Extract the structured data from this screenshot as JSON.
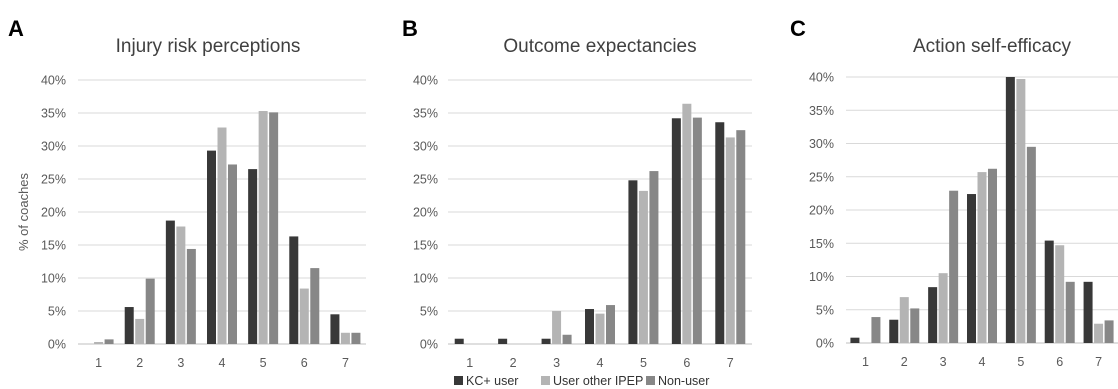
{
  "figure": {
    "legend": [
      "KC+ user",
      "User other IPEP",
      "Non-user"
    ]
  },
  "chart_data": [
    {
      "panel": "A",
      "type": "bar",
      "title": "Injury risk perceptions",
      "ylabel": "% of coaches",
      "xlabel": "",
      "categories": [
        "1",
        "2",
        "3",
        "4",
        "5",
        "6",
        "7"
      ],
      "yticks": [
        "0%",
        "5%",
        "10%",
        "15%",
        "20%",
        "25%",
        "30%",
        "35%",
        "40%"
      ],
      "ylim": [
        0,
        40
      ],
      "grid": true,
      "series": [
        {
          "name": "KC+ user",
          "values": [
            0,
            5.6,
            18.7,
            29.3,
            26.5,
            16.3,
            4.5
          ]
        },
        {
          "name": "User other IPEP",
          "values": [
            0.3,
            3.8,
            17.8,
            32.8,
            35.3,
            8.4,
            1.7
          ]
        },
        {
          "name": "Non-user",
          "values": [
            0.7,
            9.9,
            14.4,
            27.2,
            35.1,
            11.5,
            1.7
          ]
        }
      ]
    },
    {
      "panel": "B",
      "type": "bar",
      "title": "Outcome expectancies",
      "ylabel": "",
      "xlabel": "",
      "categories": [
        "1",
        "2",
        "3",
        "4",
        "5",
        "6",
        "7"
      ],
      "yticks": [
        "0%",
        "5%",
        "10%",
        "15%",
        "20%",
        "25%",
        "30%",
        "35%",
        "40%"
      ],
      "ylim": [
        0,
        40
      ],
      "grid": true,
      "series": [
        {
          "name": "KC+ user",
          "values": [
            0.8,
            0.8,
            0.8,
            5.3,
            24.8,
            34.2,
            33.6
          ]
        },
        {
          "name": "User other IPEP",
          "values": [
            0,
            0,
            5.0,
            4.6,
            23.2,
            36.4,
            31.3
          ]
        },
        {
          "name": "Non-user",
          "values": [
            0,
            0,
            1.4,
            5.9,
            26.2,
            34.3,
            32.4
          ]
        }
      ]
    },
    {
      "panel": "C",
      "type": "bar",
      "title": "Action self-efficacy",
      "ylabel": "",
      "xlabel": "",
      "categories": [
        "1",
        "2",
        "3",
        "4",
        "5",
        "6",
        "7"
      ],
      "yticks": [
        "0%",
        "5%",
        "10%",
        "15%",
        "20%",
        "25%",
        "30%",
        "35%",
        "40%"
      ],
      "ylim": [
        0,
        40
      ],
      "grid": true,
      "series": [
        {
          "name": "KC+ user",
          "values": [
            0.8,
            3.5,
            8.4,
            22.4,
            40.0,
            15.4,
            9.2
          ]
        },
        {
          "name": "User other IPEP",
          "values": [
            0,
            6.9,
            10.5,
            25.7,
            39.7,
            14.7,
            2.9
          ]
        },
        {
          "name": "Non-user",
          "values": [
            3.9,
            5.2,
            22.9,
            26.2,
            29.5,
            9.2,
            3.4
          ]
        }
      ]
    }
  ],
  "colors": {
    "series": [
      "#383838",
      "#b4b4b4",
      "#878787"
    ],
    "grid": "#d9d9d9",
    "axis": "#bfbfbf",
    "tick_text": "#595959",
    "title_text": "#404040",
    "panel_letter": "#000000"
  }
}
